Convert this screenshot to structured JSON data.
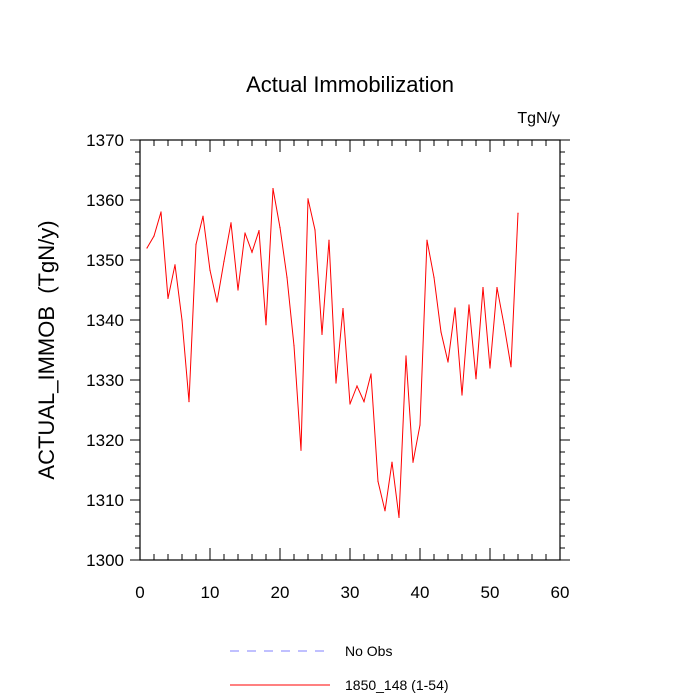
{
  "chart_data": {
    "type": "line",
    "title": "Actual Immobilization",
    "units": "TgN/y",
    "xlabel": "",
    "ylabel": "ACTUAL_IMMOB  (TgN/y)",
    "xlim": [
      0,
      60
    ],
    "ylim": [
      1300,
      1370
    ],
    "xticks": [
      0,
      10,
      20,
      30,
      40,
      50,
      60
    ],
    "yticks": [
      1300,
      1310,
      1320,
      1330,
      1340,
      1350,
      1360,
      1370
    ],
    "x": [
      1,
      2,
      3,
      4,
      5,
      6,
      7,
      8,
      9,
      10,
      11,
      12,
      13,
      14,
      15,
      16,
      17,
      18,
      19,
      20,
      21,
      22,
      23,
      24,
      25,
      26,
      27,
      28,
      29,
      30,
      31,
      32,
      33,
      34,
      35,
      36,
      37,
      38,
      39,
      40,
      41,
      42,
      43,
      44,
      45,
      46,
      47,
      48,
      49,
      50,
      51,
      52,
      53,
      54
    ],
    "series": [
      {
        "name": "1850_148 (1-54)",
        "color": "#ff0000",
        "style": "solid",
        "values": [
          1352,
          1354,
          1358,
          1343.6,
          1349.2,
          1340,
          1326.4,
          1352.6,
          1357.3,
          1348.3,
          1343,
          1349.8,
          1356.2,
          1345,
          1354.5,
          1351.3,
          1354.9,
          1339.2,
          1361.9,
          1355.4,
          1347.1,
          1335.7,
          1318.3,
          1360.2,
          1355,
          1337.6,
          1353.3,
          1329.5,
          1341.9,
          1326,
          1329,
          1326.4,
          1331,
          1313.1,
          1308.2,
          1316.3,
          1307.1,
          1334,
          1316.3,
          1322.5,
          1353.3,
          1347.1,
          1338,
          1333,
          1342,
          1327.5,
          1342.5,
          1330.2,
          1345.4,
          1332,
          1345.4,
          1339.2,
          1332.2,
          1357.8
        ]
      }
    ],
    "legend": {
      "position": "bottom",
      "entries": [
        {
          "label": "No Obs",
          "color": "#8080ff",
          "style": "dashed"
        },
        {
          "label": "1850_148 (1-54)",
          "color": "#ff0000",
          "style": "solid"
        }
      ]
    }
  }
}
